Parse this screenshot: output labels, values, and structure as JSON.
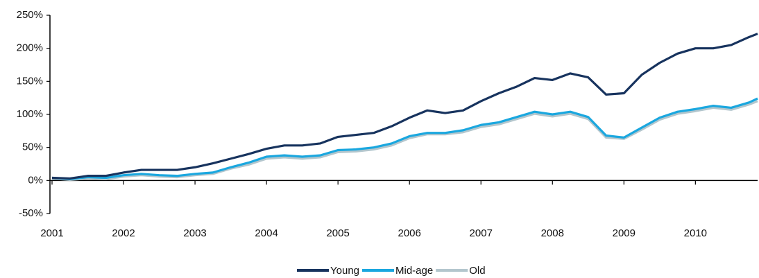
{
  "chart_data": {
    "type": "line",
    "x": [
      2001,
      2001.25,
      2001.5,
      2001.75,
      2002,
      2002.25,
      2002.5,
      2002.75,
      2003,
      2003.25,
      2003.5,
      2003.75,
      2004,
      2004.25,
      2004.5,
      2004.75,
      2005,
      2005.25,
      2005.5,
      2005.75,
      2006,
      2006.25,
      2006.5,
      2006.75,
      2007,
      2007.25,
      2007.5,
      2007.75,
      2008,
      2008.25,
      2008.5,
      2008.75,
      2009,
      2009.25,
      2009.5,
      2009.75,
      2010,
      2010.25,
      2010.5,
      2010.75,
      2010.87
    ],
    "series": [
      {
        "name": "Old",
        "color": "#b3c6cd",
        "values": [
          3,
          1,
          3,
          2,
          6,
          8,
          6,
          5,
          8,
          10,
          18,
          24,
          33,
          35,
          33,
          35,
          43,
          44,
          47,
          53,
          64,
          70,
          70,
          73,
          81,
          85,
          93,
          101,
          97,
          101,
          93,
          65,
          63,
          77,
          92,
          101,
          105,
          110,
          107,
          115,
          120
        ]
      },
      {
        "name": "Mid-age",
        "color": "#1aa7df",
        "values": [
          4,
          2,
          5,
          4,
          8,
          10,
          8,
          7,
          10,
          12,
          20,
          27,
          36,
          38,
          36,
          38,
          46,
          47,
          50,
          56,
          67,
          72,
          72,
          76,
          84,
          88,
          96,
          104,
          100,
          104,
          96,
          68,
          65,
          80,
          95,
          104,
          108,
          113,
          110,
          118,
          124
        ]
      },
      {
        "name": "Young",
        "color": "#17335e",
        "values": [
          4,
          3,
          7,
          7,
          12,
          16,
          16,
          16,
          20,
          26,
          33,
          40,
          48,
          53,
          53,
          56,
          66,
          69,
          72,
          82,
          95,
          106,
          102,
          106,
          120,
          132,
          142,
          155,
          152,
          162,
          156,
          130,
          132,
          160,
          178,
          192,
          200,
          200,
          205,
          217,
          222
        ]
      }
    ],
    "legend_order": [
      "Young",
      "Mid-age",
      "Old"
    ],
    "xlim": [
      2001,
      2010.87
    ],
    "xticks": [
      2001,
      2002,
      2003,
      2004,
      2005,
      2006,
      2007,
      2008,
      2009,
      2010
    ],
    "ylim": [
      -50,
      250
    ],
    "yticks": [
      {
        "value": -50,
        "label": "-50%"
      },
      {
        "value": 0,
        "label": "0%"
      },
      {
        "value": 50,
        "label": "50%"
      },
      {
        "value": 100,
        "label": "100%"
      },
      {
        "value": 150,
        "label": "150%"
      },
      {
        "value": 200,
        "label": "200%"
      },
      {
        "value": 250,
        "label": "250%"
      }
    ],
    "legend": "bottom"
  }
}
